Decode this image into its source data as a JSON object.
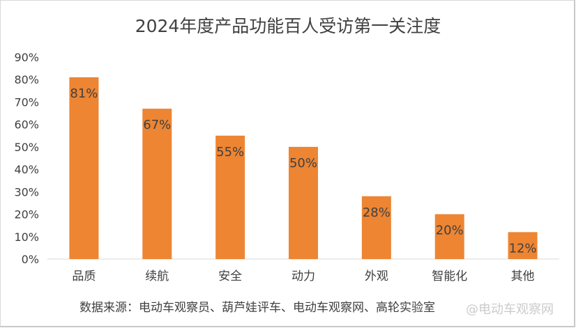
{
  "chart_data": {
    "type": "bar",
    "title": "2024年度产品功能百人受访第一关注度",
    "categories": [
      "品质",
      "续航",
      "安全",
      "动力",
      "外观",
      "智能化",
      "其他"
    ],
    "values": [
      81,
      67,
      55,
      50,
      28,
      20,
      12
    ],
    "data_labels": [
      "81%",
      "67%",
      "55%",
      "50%",
      "28%",
      "20%",
      "12%"
    ],
    "ylim": [
      0,
      90
    ],
    "yticks": [
      "0%",
      "10%",
      "20%",
      "30%",
      "40%",
      "50%",
      "60%",
      "70%",
      "80%",
      "90%"
    ],
    "xlabel": "",
    "ylabel": "",
    "grid": false,
    "bar_color": "#ED8533"
  },
  "source": "数据来源：电动车观察员、葫芦娃评车、电动车观察网、高轮实验室",
  "watermark": "@电动车观察网"
}
